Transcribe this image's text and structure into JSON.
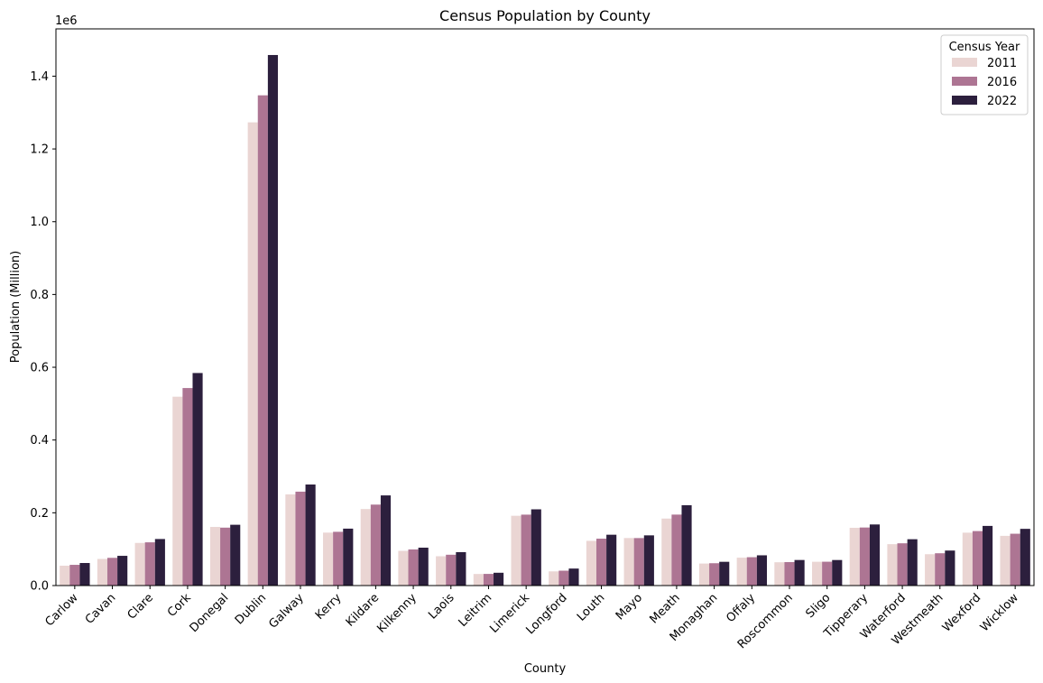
{
  "chart_data": {
    "type": "bar",
    "title": "Census Population by County",
    "xlabel": "County",
    "ylabel": "Population (Million)",
    "y_offset_label": "1e6",
    "ylim": [
      0,
      1530000
    ],
    "yticks": [
      "0.0",
      "0.2",
      "0.4",
      "0.6",
      "0.8",
      "1.0",
      "1.2",
      "1.4"
    ],
    "grid": false,
    "legend": {
      "title": "Census Year",
      "position": "top-right"
    },
    "categories": [
      "Carlow",
      "Cavan",
      "Clare",
      "Cork",
      "Donegal",
      "Dublin",
      "Galway",
      "Kerry",
      "Kildare",
      "Kilkenny",
      "Laois",
      "Leitrim",
      "Limerick",
      "Longford",
      "Louth",
      "Mayo",
      "Meath",
      "Monaghan",
      "Offaly",
      "Roscommon",
      "Sligo",
      "Tipperary",
      "Waterford",
      "Westmeath",
      "Wexford",
      "Wicklow"
    ],
    "series": [
      {
        "name": "2011",
        "color": "#ead5d3",
        "values": [
          54612,
          73183,
          117196,
          519032,
          161137,
          1273069,
          250653,
          145502,
          210312,
          95419,
          80559,
          31798,
          191809,
          39000,
          122897,
          130638,
          184135,
          60483,
          76687,
          64065,
          65393,
          158754,
          113795,
          86164,
          145320,
          136640
        ]
      },
      {
        "name": "2016",
        "color": "#ad7593",
        "values": [
          56932,
          76176,
          118817,
          542868,
          159192,
          1347359,
          258058,
          147707,
          222504,
          99232,
          84697,
          32044,
          194899,
          40873,
          128884,
          130507,
          195044,
          61386,
          77961,
          64544,
          65535,
          159553,
          116176,
          88770,
          149722,
          142425
        ]
      },
      {
        "name": "2022",
        "color": "#2c1f3d",
        "values": [
          61968,
          81704,
          127938,
          584156,
          167084,
          1458154,
          277737,
          156458,
          247774,
          104160,
          91877,
          35199,
          209536,
          46751,
          139703,
          137970,
          220826,
          65288,
          83150,
          70259,
          70198,
          167895,
          127363,
          96221,
          163919,
          155851
        ]
      }
    ]
  }
}
